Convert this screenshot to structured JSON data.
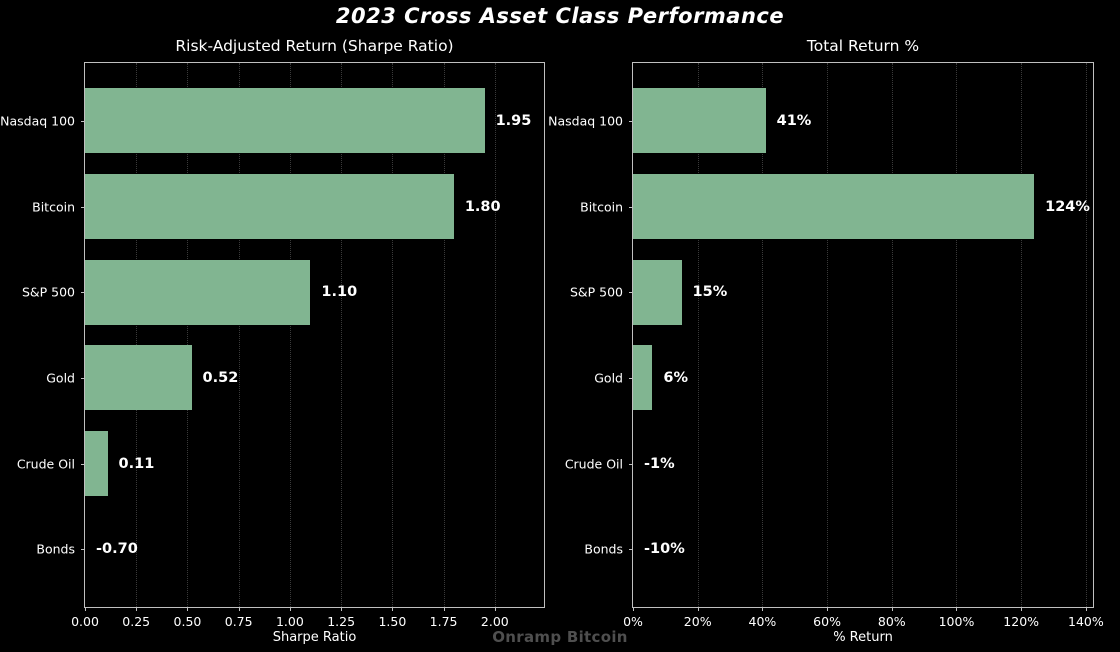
{
  "title": "2023 Cross Asset Class Performance",
  "footer": "Onramp Bitcoin",
  "colors": {
    "background": "#000000",
    "bar_fill": "#81b591",
    "text": "#ffffff",
    "gridline": "#3a3a3a",
    "spine": "#c0c0c0",
    "footer_text": "#4f4f4f"
  },
  "chart_data": [
    {
      "type": "bar",
      "orientation": "horizontal",
      "title": "Risk-Adjusted Return (Sharpe Ratio)",
      "xlabel": "Sharpe Ratio",
      "categories": [
        "Nasdaq 100",
        "Bitcoin",
        "S&P 500",
        "Gold",
        "Crude Oil",
        "Bonds"
      ],
      "values": [
        1.95,
        1.8,
        1.1,
        0.52,
        0.11,
        -0.7
      ],
      "value_labels": [
        "1.95",
        "1.80",
        "1.10",
        "0.52",
        "0.11",
        "-0.70"
      ],
      "xlim": [
        0,
        2.24
      ],
      "xticks": [
        0,
        0.25,
        0.5,
        0.75,
        1,
        1.25,
        1.5,
        1.75,
        2
      ],
      "xtick_labels": [
        "0.00",
        "0.25",
        "0.50",
        "0.75",
        "1.00",
        "1.25",
        "1.50",
        "1.75",
        "2.00"
      ],
      "grid": true
    },
    {
      "type": "bar",
      "orientation": "horizontal",
      "title": "Total Return %",
      "xlabel": "% Return",
      "categories": [
        "Nasdaq 100",
        "Bitcoin",
        "S&P 500",
        "Gold",
        "Crude Oil",
        "Bonds"
      ],
      "values": [
        41,
        124,
        15,
        6,
        -1,
        -10
      ],
      "value_labels": [
        "41%",
        "124%",
        "15%",
        "6%",
        "-1%",
        "-10%"
      ],
      "xlim": [
        0,
        142.2
      ],
      "xticks": [
        0,
        20,
        40,
        60,
        80,
        100,
        120,
        140
      ],
      "xtick_labels": [
        "0%",
        "20%",
        "40%",
        "60%",
        "80%",
        "100%",
        "120%",
        "140%"
      ],
      "grid": true
    }
  ]
}
